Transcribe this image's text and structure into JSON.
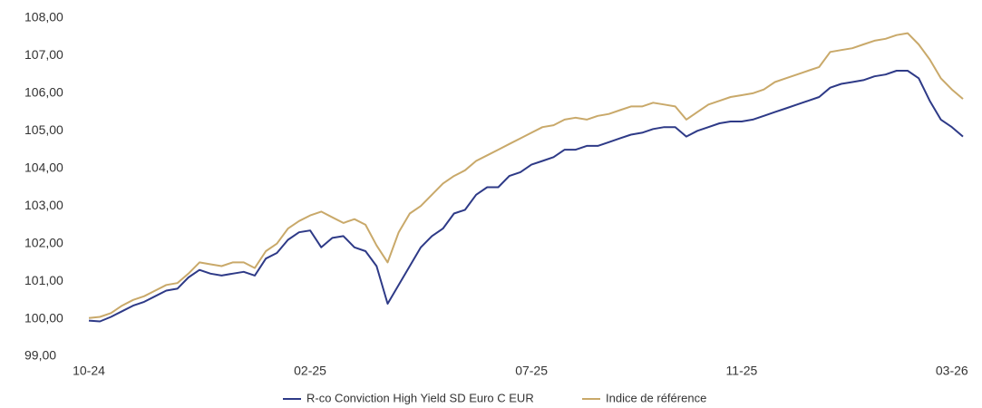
{
  "chart_data": {
    "type": "line",
    "categories": [
      "10-24",
      null,
      null,
      null,
      null,
      null,
      null,
      null,
      null,
      null,
      null,
      null,
      null,
      null,
      null,
      null,
      null,
      null,
      null,
      null,
      "02-25",
      null,
      null,
      null,
      null,
      null,
      null,
      null,
      null,
      null,
      null,
      null,
      null,
      null,
      null,
      null,
      null,
      null,
      null,
      null,
      "07-25",
      null,
      null,
      null,
      null,
      null,
      null,
      null,
      null,
      null,
      null,
      null,
      null,
      null,
      null,
      null,
      null,
      null,
      null,
      "11-25",
      null,
      null,
      null,
      null,
      null,
      null,
      null,
      null,
      null,
      null,
      null,
      null,
      null,
      null,
      null,
      null,
      null,
      null,
      "03-26",
      null
    ],
    "series": [
      {
        "name": "R-co Conviction High Yield SD Euro C EUR",
        "color": "#2e3a87",
        "values": [
          99.95,
          99.93,
          100.05,
          100.2,
          100.35,
          100.45,
          100.6,
          100.75,
          100.8,
          101.1,
          101.3,
          101.2,
          101.15,
          101.2,
          101.25,
          101.15,
          101.6,
          101.75,
          102.1,
          102.3,
          102.35,
          101.9,
          102.15,
          102.2,
          101.9,
          101.8,
          101.4,
          100.4,
          100.9,
          101.4,
          101.9,
          102.2,
          102.4,
          102.8,
          102.9,
          103.3,
          103.5,
          103.5,
          103.8,
          103.9,
          104.1,
          104.2,
          104.3,
          104.5,
          104.5,
          104.6,
          104.6,
          104.7,
          104.8,
          104.9,
          104.95,
          105.05,
          105.1,
          105.1,
          104.85,
          105.0,
          105.1,
          105.2,
          105.25,
          105.25,
          105.3,
          105.4,
          105.5,
          105.6,
          105.7,
          105.8,
          105.9,
          106.15,
          106.25,
          106.3,
          106.35,
          106.45,
          106.5,
          106.6,
          106.6,
          106.4,
          105.8,
          105.3,
          105.1,
          104.85
        ]
      },
      {
        "name": "Indice de référence",
        "color": "#c9a96a",
        "values": [
          100.02,
          100.05,
          100.15,
          100.35,
          100.5,
          100.6,
          100.75,
          100.9,
          100.95,
          101.2,
          101.5,
          101.45,
          101.4,
          101.5,
          101.5,
          101.35,
          101.8,
          102.0,
          102.4,
          102.6,
          102.75,
          102.85,
          102.7,
          102.55,
          102.65,
          102.5,
          101.95,
          101.5,
          102.3,
          102.8,
          103.0,
          103.3,
          103.6,
          103.8,
          103.95,
          104.2,
          104.35,
          104.5,
          104.65,
          104.8,
          104.95,
          105.1,
          105.15,
          105.3,
          105.35,
          105.3,
          105.4,
          105.45,
          105.55,
          105.65,
          105.65,
          105.75,
          105.7,
          105.65,
          105.3,
          105.5,
          105.7,
          105.8,
          105.9,
          105.95,
          106.0,
          106.1,
          106.3,
          106.4,
          106.5,
          106.6,
          106.7,
          107.1,
          107.15,
          107.2,
          107.3,
          107.4,
          107.45,
          107.55,
          107.6,
          107.3,
          106.9,
          106.4,
          106.1,
          105.85
        ]
      }
    ],
    "ylim": [
      99,
      108
    ],
    "yticks": [
      {
        "value": 99,
        "label": "99,00"
      },
      {
        "value": 100,
        "label": "100,00"
      },
      {
        "value": 101,
        "label": "101,00"
      },
      {
        "value": 102,
        "label": "102,00"
      },
      {
        "value": 103,
        "label": "103,00"
      },
      {
        "value": 104,
        "label": "104,00"
      },
      {
        "value": 105,
        "label": "105,00"
      },
      {
        "value": 106,
        "label": "106,00"
      },
      {
        "value": 107,
        "label": "107,00"
      },
      {
        "value": 108,
        "label": "108,00"
      }
    ],
    "grid": false,
    "legend": "bottom"
  }
}
